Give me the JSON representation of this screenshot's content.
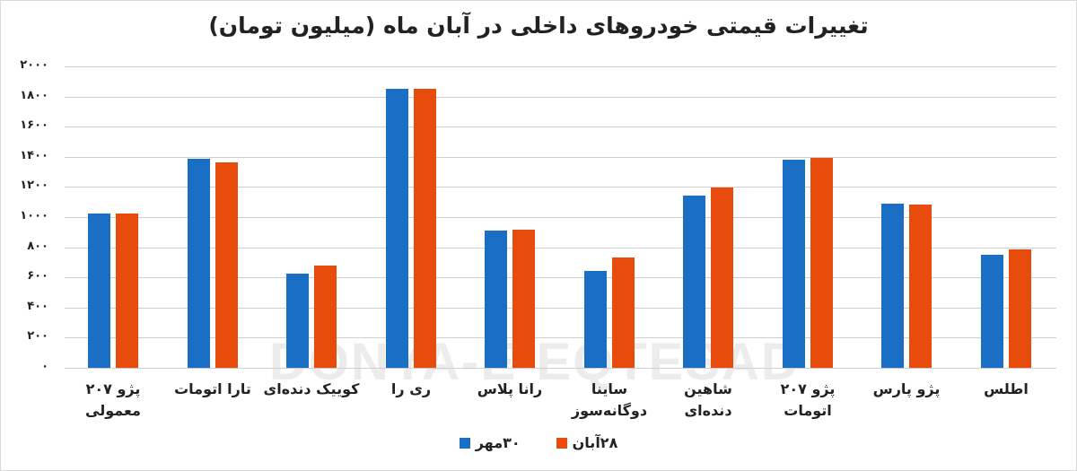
{
  "chart_data": {
    "type": "bar",
    "title": "تغییرات قیمتی خودروهای داخلی در آبان ماه (میلیون تومان)",
    "xlabel": "",
    "ylabel": "",
    "ylim": [
      0,
      2000
    ],
    "yticks": [
      "۰",
      "۲۰۰",
      "۴۰۰",
      "۶۰۰",
      "۸۰۰",
      "۱۰۰۰",
      "۱۲۰۰",
      "۱۴۰۰",
      "۱۶۰۰",
      "۱۸۰۰",
      "۲۰۰۰"
    ],
    "ytick_values": [
      0,
      200,
      400,
      600,
      800,
      1000,
      1200,
      1400,
      1600,
      1800,
      2000
    ],
    "grid": true,
    "legend_position": "bottom",
    "categories": [
      "پژو ۲۰۷ معمولی",
      "تارا اتومات",
      "کوییک دنده‌ای",
      "ری را",
      "رانا پلاس",
      "ساینا دوگانه‌سوز",
      "شاهین دنده‌ای",
      "پژو ۲۰۷ اتومات",
      "پژو پارس",
      "اطلس"
    ],
    "category_lines": [
      [
        "پژو ۲۰۷",
        "معمولی"
      ],
      [
        "تارا اتومات"
      ],
      [
        "کوییک دنده‌ای"
      ],
      [
        "ری را"
      ],
      [
        "رانا پلاس"
      ],
      [
        "ساینا",
        "دوگانه‌سوز"
      ],
      [
        "شاهین دنده‌ای"
      ],
      [
        "پژو ۲۰۷",
        "اتومات"
      ],
      [
        "پژو پارس"
      ],
      [
        "اطلس"
      ]
    ],
    "series": [
      {
        "name": "۳۰مهر",
        "color": "#1a6fc4",
        "values": [
          1025,
          1385,
          627,
          1850,
          910,
          643,
          1145,
          1380,
          1087,
          750
        ]
      },
      {
        "name": "۲۸آبان",
        "color": "#e84c0c",
        "values": [
          1025,
          1365,
          678,
          1850,
          918,
          732,
          1195,
          1395,
          1085,
          788
        ]
      }
    ]
  },
  "watermark": "DONYA-E-EQTESAD",
  "legend": {
    "items": [
      {
        "label": "۲۸آبان",
        "color": "#e84c0c"
      },
      {
        "label": "۳۰مهر",
        "color": "#1a6fc4"
      }
    ]
  }
}
